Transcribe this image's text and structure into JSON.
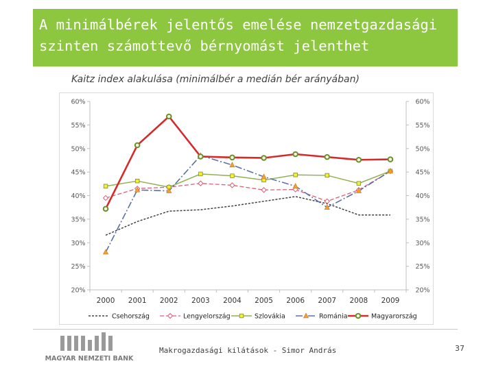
{
  "slide": {
    "title_line1": "A minimálbérek jelentős emelése nemzetgazdasági",
    "title_line2": "szinten számottevő bérnyomást jelenthet",
    "subtitle": "Kaitz index alakulása (minimálbér a medián bér arányában)",
    "footer_text": "Makrogazdasági kilátások - Simor András",
    "page_number": "37",
    "logo_text": "MAGYAR NEMZETI BANK"
  },
  "colors": {
    "title_bg": "#8dc63f",
    "cseh": "#404040",
    "lengyel": "#e05a75",
    "szlovak": "#8fb050",
    "roman": "#e8912a",
    "magyar": "#d62a2a"
  },
  "chart_data": {
    "type": "line",
    "title": "Kaitz index alakulása (minimálbér a medián bér arányában)",
    "categories": [
      "2000",
      "2001",
      "2002",
      "2003",
      "2004",
      "2005",
      "2006",
      "2007",
      "2008",
      "2009"
    ],
    "ylim": [
      0.2,
      0.6
    ],
    "yticks": [
      0.2,
      0.25,
      0.3,
      0.35,
      0.4,
      0.45,
      0.5,
      0.55,
      0.6
    ],
    "ytick_labels": [
      "20%",
      "25%",
      "30%",
      "35%",
      "40%",
      "45%",
      "50%",
      "55%",
      "60%"
    ],
    "y2tick_labels": [
      "20%",
      "25%",
      "30%",
      "35%",
      "40%",
      "45%",
      "50%",
      "55%",
      "60%"
    ],
    "legend_position": "bottom",
    "series": [
      {
        "key": "cseh",
        "name": "Csehország",
        "values": [
          0.316,
          0.345,
          0.367,
          0.37,
          0.378,
          0.388,
          0.398,
          0.383,
          0.359,
          0.359
        ],
        "dash": "3,2",
        "marker": "none"
      },
      {
        "key": "lengyel",
        "name": "Lengyelország",
        "values": [
          0.395,
          0.415,
          0.418,
          0.426,
          0.422,
          0.412,
          0.413,
          0.388,
          0.412,
          0.452
        ],
        "dash": "6,3",
        "marker": "diamond"
      },
      {
        "key": "szlovak",
        "name": "Szlovákia",
        "values": [
          0.42,
          0.431,
          0.418,
          0.446,
          0.442,
          0.433,
          0.444,
          0.443,
          0.426,
          0.452
        ],
        "dash": "",
        "marker": "square"
      },
      {
        "key": "roman",
        "name": "Románia",
        "values": [
          0.28,
          0.412,
          0.41,
          0.485,
          0.465,
          0.44,
          0.42,
          0.375,
          0.41,
          0.452
        ],
        "dash": "10,3,2,3",
        "marker": "triangle"
      },
      {
        "key": "magyar",
        "name": "Magyarország",
        "values": [
          0.372,
          0.507,
          0.568,
          0.483,
          0.481,
          0.48,
          0.488,
          0.482,
          0.476,
          0.477
        ],
        "dash": "",
        "marker": "circle"
      }
    ]
  }
}
